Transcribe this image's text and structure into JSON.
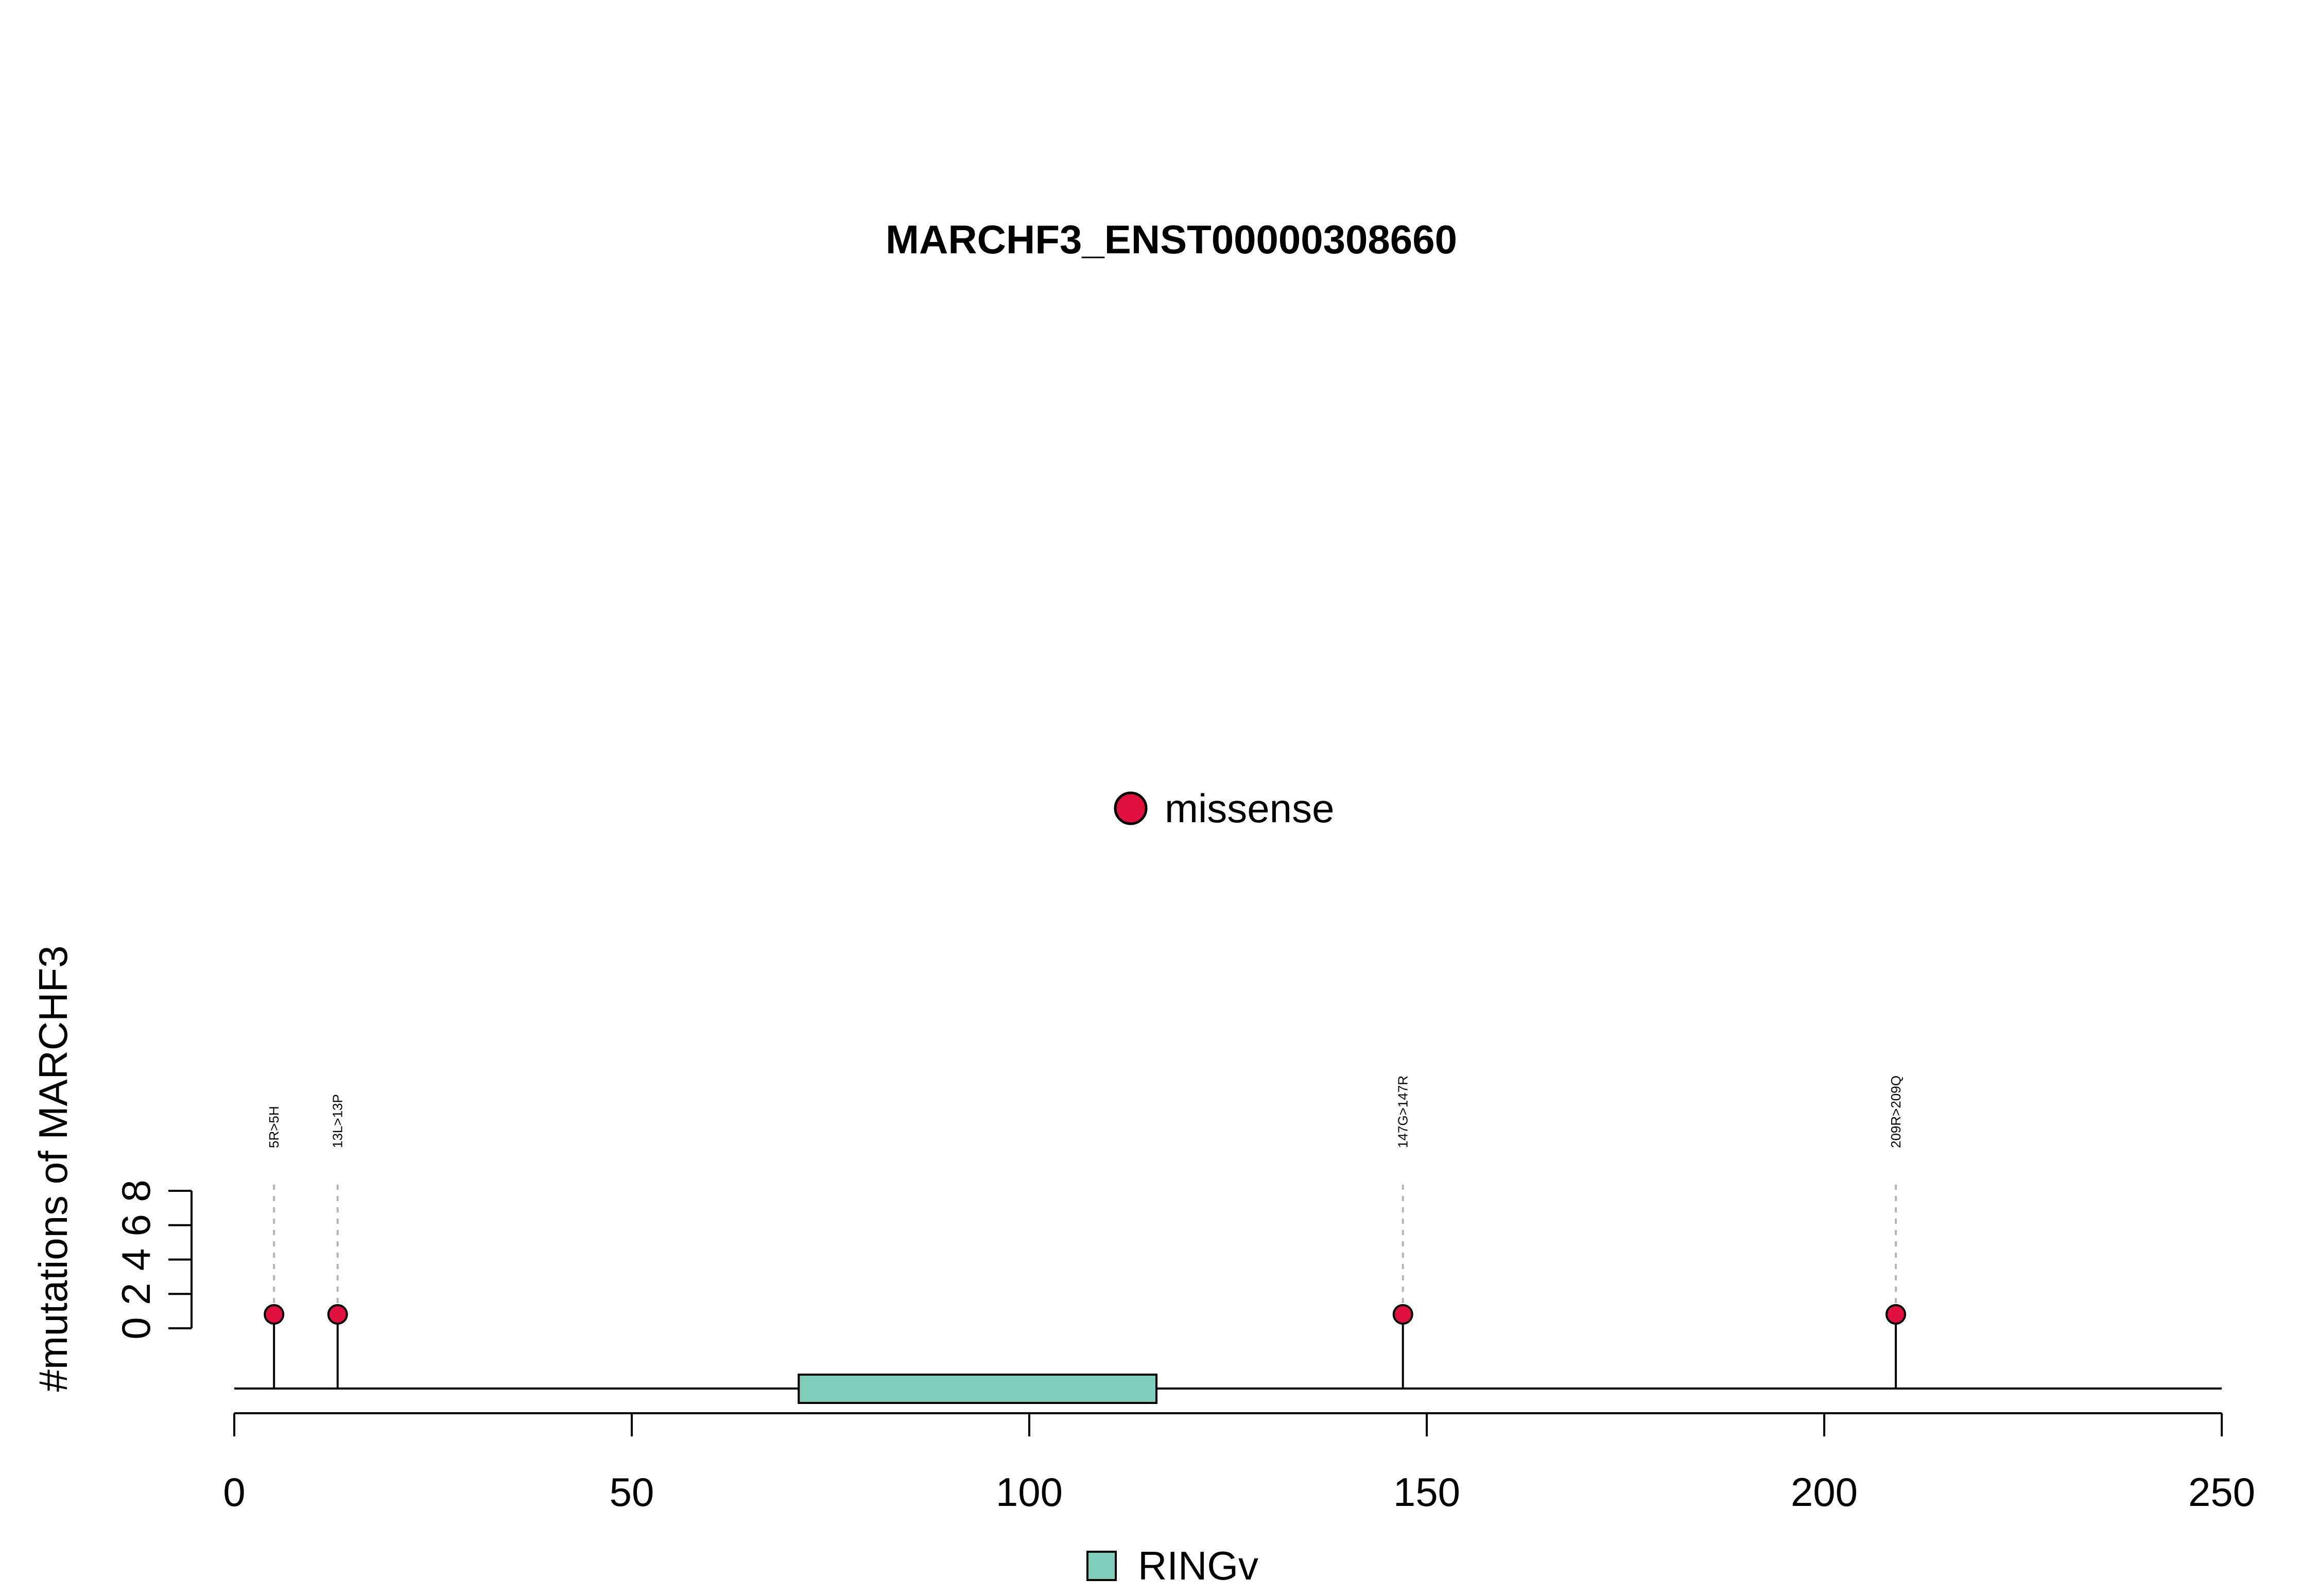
{
  "chart_data": {
    "type": "lollipop",
    "title": "MARCHF3_ENST00000308660",
    "ylabel": "#mutations of MARCHF3",
    "xlabel": "",
    "xlim": [
      0,
      250
    ],
    "x_ticks": [
      0,
      50,
      100,
      150,
      200,
      250
    ],
    "ylim": [
      0,
      8
    ],
    "y_ticks": [
      0,
      2,
      4,
      6,
      8
    ],
    "mutations": [
      {
        "position": 5,
        "count": 1,
        "label": "5R>5H",
        "type": "missense"
      },
      {
        "position": 13,
        "count": 1,
        "label": "13L>13P",
        "type": "missense"
      },
      {
        "position": 147,
        "count": 1,
        "label": "147G>147R",
        "type": "missense"
      },
      {
        "position": 209,
        "count": 1,
        "label": "209R>209Q",
        "type": "missense"
      }
    ],
    "domains": [
      {
        "name": "RINGv",
        "start": 71,
        "end": 116,
        "color": "#7FCDBB"
      }
    ],
    "mutation_legend": [
      {
        "label": "missense",
        "color": "#E0103F"
      }
    ],
    "domain_legend": [
      {
        "label": "RINGv",
        "color": "#7FCDBB"
      }
    ],
    "grid": false
  }
}
